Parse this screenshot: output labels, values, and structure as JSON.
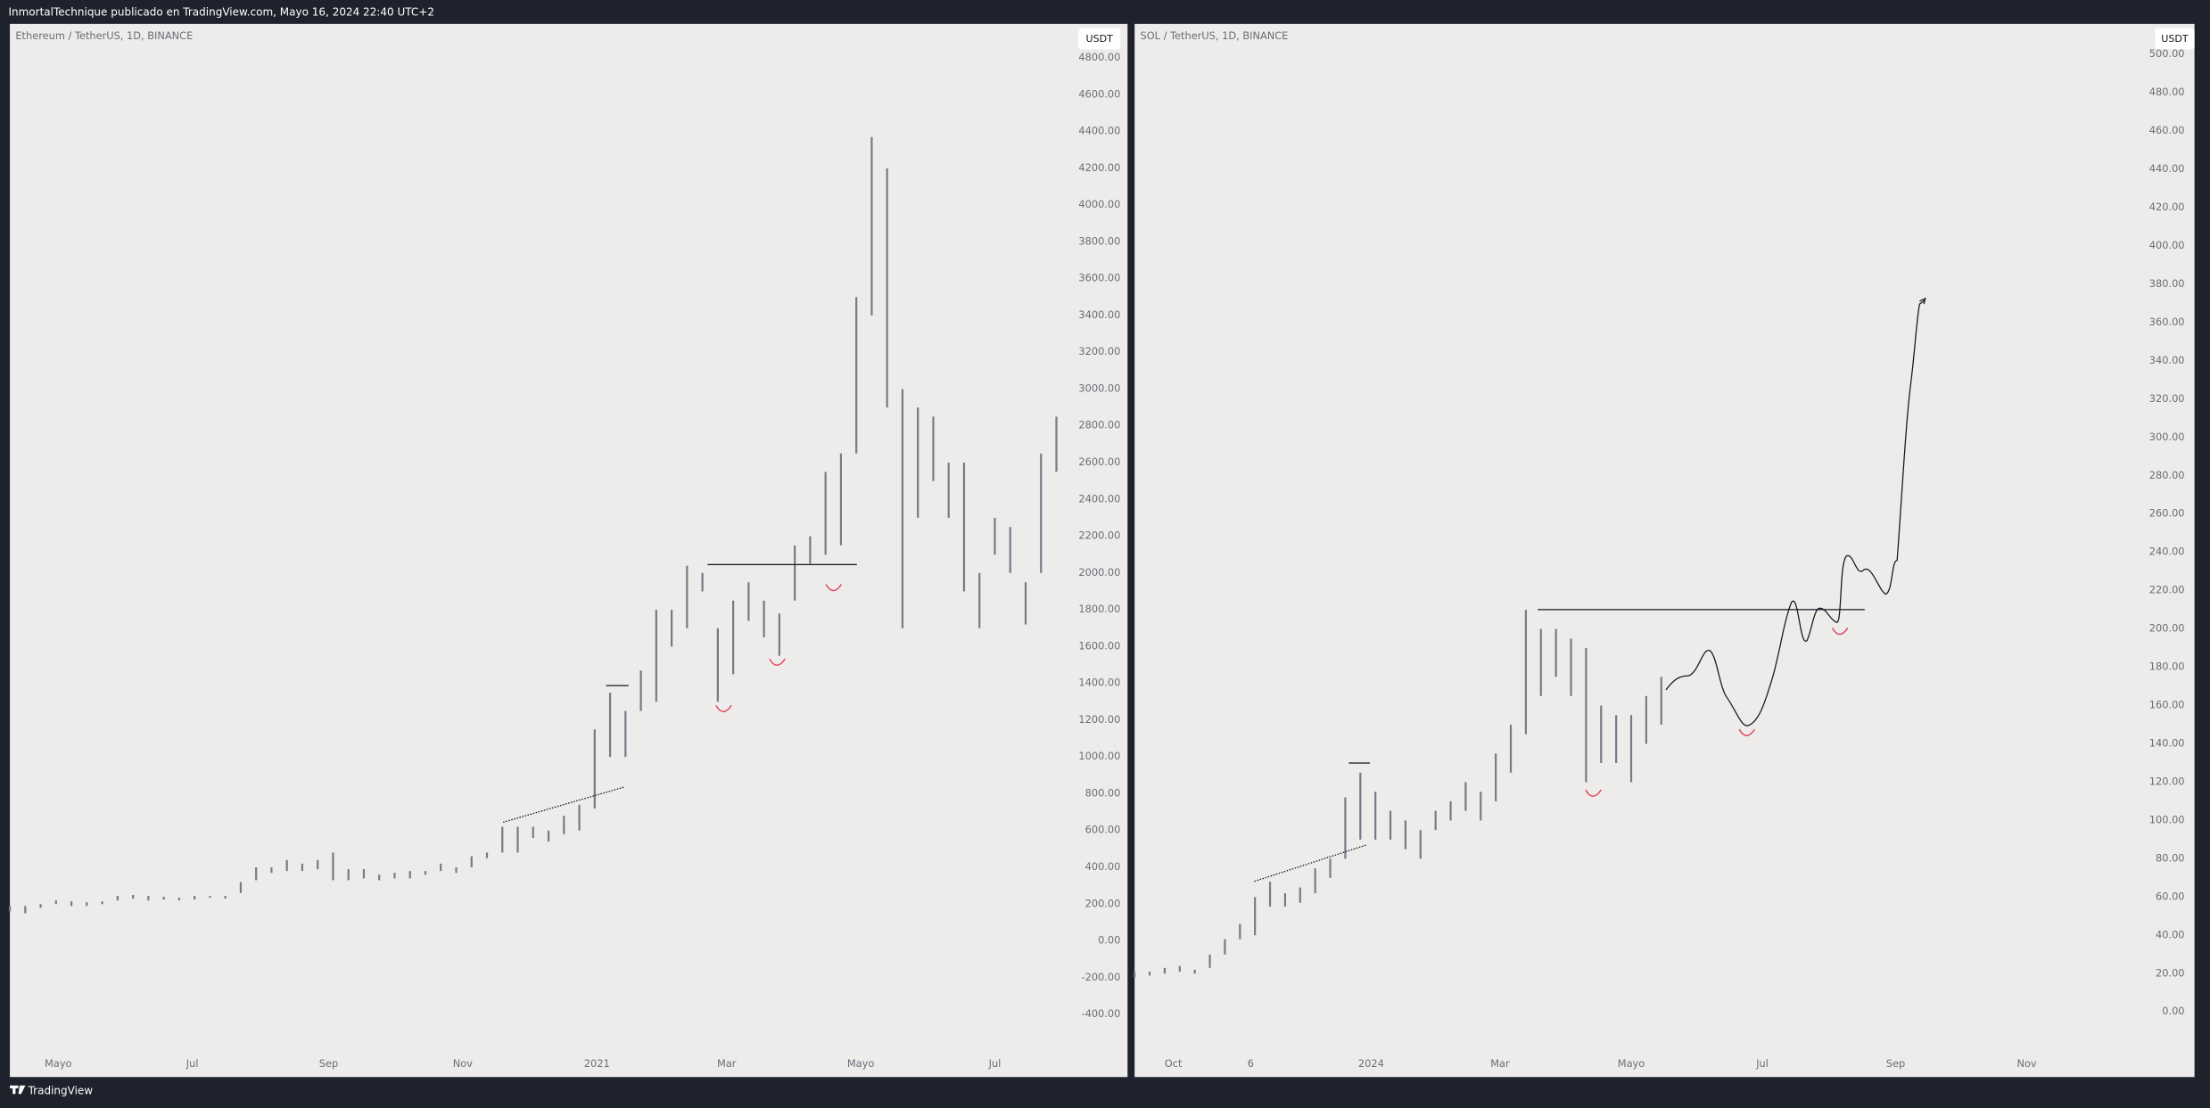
{
  "header": {
    "title": "InmortalTechnique publicado en TradingView.com, Mayo 16, 2024 22:40 UTC+2"
  },
  "footer": {
    "brand": "TradingView"
  },
  "chart_data": [
    {
      "type": "range",
      "title": "Ethereum / TetherUS, 1D, BINANCE",
      "unit": "USDT",
      "color": "#787b86",
      "x": [
        0,
        7,
        14,
        21,
        28,
        35,
        42,
        49,
        56,
        63,
        70,
        77,
        84,
        91,
        98,
        105,
        112,
        119,
        126,
        133,
        140,
        147,
        154,
        161,
        168,
        175,
        182,
        189,
        196,
        203,
        210,
        217,
        224,
        231,
        238,
        245,
        252,
        259,
        266,
        273,
        280,
        287,
        294,
        301,
        308,
        315,
        322,
        329,
        336,
        343,
        350,
        357,
        364,
        371,
        378,
        385,
        392,
        399,
        406,
        413,
        420,
        427,
        434,
        441,
        448,
        455,
        462,
        469,
        476
      ],
      "low": [
        160,
        150,
        180,
        200,
        190,
        190,
        200,
        220,
        230,
        220,
        225,
        220,
        225,
        235,
        230,
        260,
        330,
        370,
        380,
        380,
        390,
        330,
        330,
        340,
        330,
        340,
        340,
        360,
        380,
        370,
        400,
        450,
        480,
        480,
        560,
        540,
        580,
        600,
        720,
        1000,
        1000,
        1250,
        1300,
        1600,
        1700,
        1900,
        1300,
        1450,
        1740,
        1650,
        1550,
        1850,
        2050,
        2100,
        2150,
        2650,
        3400,
        2900,
        1700,
        2300,
        2500,
        2300,
        1900,
        1700,
        2100,
        2000,
        1720,
        2000,
        2550
      ],
      "high": [
        190,
        190,
        200,
        220,
        215,
        210,
        215,
        245,
        250,
        245,
        240,
        235,
        245,
        245,
        245,
        320,
        400,
        400,
        440,
        420,
        440,
        480,
        390,
        390,
        360,
        370,
        380,
        380,
        420,
        400,
        460,
        480,
        620,
        620,
        620,
        600,
        680,
        740,
        1150,
        1350,
        1250,
        1470,
        1800,
        1800,
        2040,
        2000,
        1700,
        1850,
        1950,
        1850,
        1780,
        2150,
        2200,
        2550,
        2650,
        3500,
        4370,
        4200,
        3000,
        2900,
        2850,
        2600,
        2600,
        2000,
        2300,
        2250,
        1950,
        2650,
        2850
      ],
      "xlim": [
        0,
        484
      ],
      "ylim": [
        -740,
        4985
      ],
      "xticks": [
        {
          "value": 22,
          "label": "Mayo"
        },
        {
          "value": 83,
          "label": "Jul"
        },
        {
          "value": 145,
          "label": "Sep"
        },
        {
          "value": 206,
          "label": "Nov"
        },
        {
          "value": 267,
          "label": "2021"
        },
        {
          "value": 326,
          "label": "Mar"
        },
        {
          "value": 387,
          "label": "Mayo"
        },
        {
          "value": 448,
          "label": "Jul"
        }
      ],
      "yticks": [
        {
          "value": 4800,
          "label": "4800.00"
        },
        {
          "value": 4600,
          "label": "4600.00"
        },
        {
          "value": 4400,
          "label": "4400.00"
        },
        {
          "value": 4200,
          "label": "4200.00"
        },
        {
          "value": 4000,
          "label": "4000.00"
        },
        {
          "value": 3800,
          "label": "3800.00"
        },
        {
          "value": 3600,
          "label": "3600.00"
        },
        {
          "value": 3400,
          "label": "3400.00"
        },
        {
          "value": 3200,
          "label": "3200.00"
        },
        {
          "value": 3000,
          "label": "3000.00"
        },
        {
          "value": 2800,
          "label": "2800.00"
        },
        {
          "value": 2600,
          "label": "2600.00"
        },
        {
          "value": 2400,
          "label": "2400.00"
        },
        {
          "value": 2200,
          "label": "2200.00"
        },
        {
          "value": 2000,
          "label": "2000.00"
        },
        {
          "value": 1800,
          "label": "1800.00"
        },
        {
          "value": 1600,
          "label": "1600.00"
        },
        {
          "value": 1400,
          "label": "1400.00"
        },
        {
          "value": 1200,
          "label": "1200.00"
        },
        {
          "value": 1000,
          "label": "1000.00"
        },
        {
          "value": 800,
          "label": "800.00"
        },
        {
          "value": 600,
          "label": "600.00"
        },
        {
          "value": 400,
          "label": "400.00"
        },
        {
          "value": 200,
          "label": "200.00"
        },
        {
          "value": 0,
          "label": "0.00"
        },
        {
          "value": -200,
          "label": "-200.00"
        },
        {
          "value": -400,
          "label": "-400.00"
        }
      ]
    },
    {
      "type": "range",
      "title": "SOL / TetherUS, 1D, BINANCE",
      "unit": "USDT",
      "color": "#787b86",
      "x": [
        0,
        7,
        14,
        21,
        28,
        35,
        42,
        49,
        56,
        63,
        70,
        77,
        84,
        91,
        98,
        105,
        112,
        119,
        126,
        133,
        140,
        147,
        154,
        161,
        168,
        175,
        182,
        189,
        196,
        203,
        210,
        217,
        224,
        231,
        238,
        245
      ],
      "low": [
        18,
        19,
        20,
        21,
        20,
        23,
        30,
        38,
        40,
        55,
        55,
        57,
        62,
        70,
        80,
        90,
        90,
        90,
        85,
        80,
        95,
        100,
        105,
        100,
        110,
        125,
        145,
        165,
        175,
        165,
        120,
        130,
        130,
        120,
        140,
        150
      ],
      "high": [
        21,
        21,
        23,
        24,
        22,
        30,
        38,
        46,
        60,
        68,
        62,
        65,
        75,
        80,
        112,
        125,
        115,
        105,
        100,
        95,
        105,
        110,
        120,
        115,
        135,
        150,
        210,
        200,
        200,
        195,
        190,
        160,
        155,
        155,
        165,
        175
      ],
      "xlim": [
        0,
        474
      ],
      "ylim": [
        -34,
        516
      ],
      "xticks": [
        {
          "value": 18,
          "label": "Oct"
        },
        {
          "value": 54,
          "label": "6"
        },
        {
          "value": 110,
          "label": "2024"
        },
        {
          "value": 170,
          "label": "Mar"
        },
        {
          "value": 231,
          "label": "Mayo"
        },
        {
          "value": 292,
          "label": "Jul"
        },
        {
          "value": 354,
          "label": "Sep"
        },
        {
          "value": 415,
          "label": "Nov"
        }
      ],
      "yticks": [
        {
          "value": 500,
          "label": "500.00"
        },
        {
          "value": 480,
          "label": "480.00"
        },
        {
          "value": 460,
          "label": "460.00"
        },
        {
          "value": 440,
          "label": "440.00"
        },
        {
          "value": 420,
          "label": "420.00"
        },
        {
          "value": 400,
          "label": "400.00"
        },
        {
          "value": 380,
          "label": "380.00"
        },
        {
          "value": 360,
          "label": "360.00"
        },
        {
          "value": 340,
          "label": "340.00"
        },
        {
          "value": 320,
          "label": "320.00"
        },
        {
          "value": 300,
          "label": "300.00"
        },
        {
          "value": 280,
          "label": "280.00"
        },
        {
          "value": 260,
          "label": "260.00"
        },
        {
          "value": 240,
          "label": "240.00"
        },
        {
          "value": 220,
          "label": "220.00"
        },
        {
          "value": 200,
          "label": "200.00"
        },
        {
          "value": 180,
          "label": "180.00"
        },
        {
          "value": 160,
          "label": "160.00"
        },
        {
          "value": 140,
          "label": "140.00"
        },
        {
          "value": 120,
          "label": "120.00"
        },
        {
          "value": 100,
          "label": "100.00"
        },
        {
          "value": 80,
          "label": "80.00"
        },
        {
          "value": 60,
          "label": "60.00"
        },
        {
          "value": 40,
          "label": "40.00"
        },
        {
          "value": 20,
          "label": "20.00"
        },
        {
          "value": 0,
          "label": "0.00"
        }
      ]
    }
  ]
}
